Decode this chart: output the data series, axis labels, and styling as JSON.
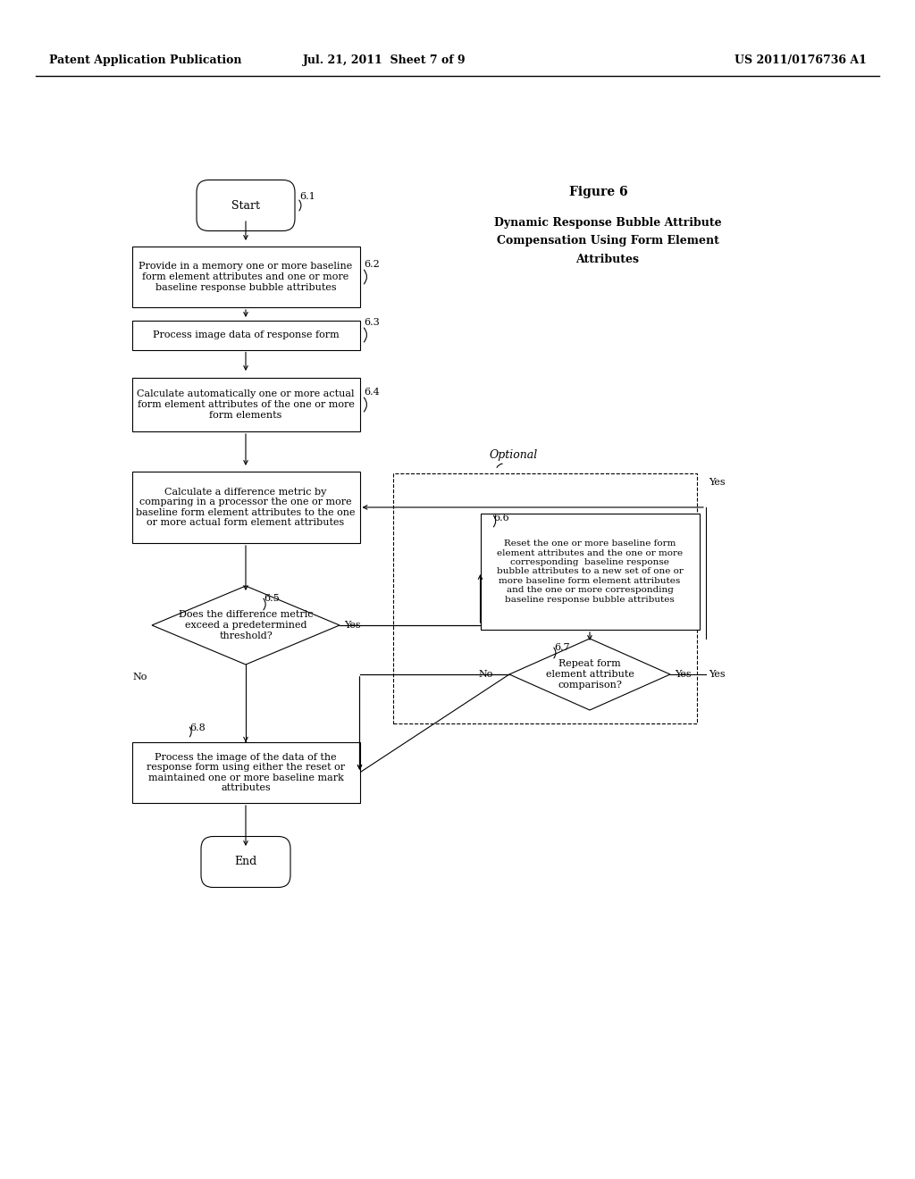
{
  "header_left": "Patent Application Publication",
  "header_mid": "Jul. 21, 2011  Sheet 7 of 9",
  "header_right": "US 2011/0176736 A1",
  "figure_title": "Figure 6",
  "diagram_title_line1": "Dynamic Response Bubble Attribute",
  "diagram_title_line2": "Compensation Using Form Element",
  "diagram_title_line3": "Attributes",
  "background_color": "#ffffff"
}
